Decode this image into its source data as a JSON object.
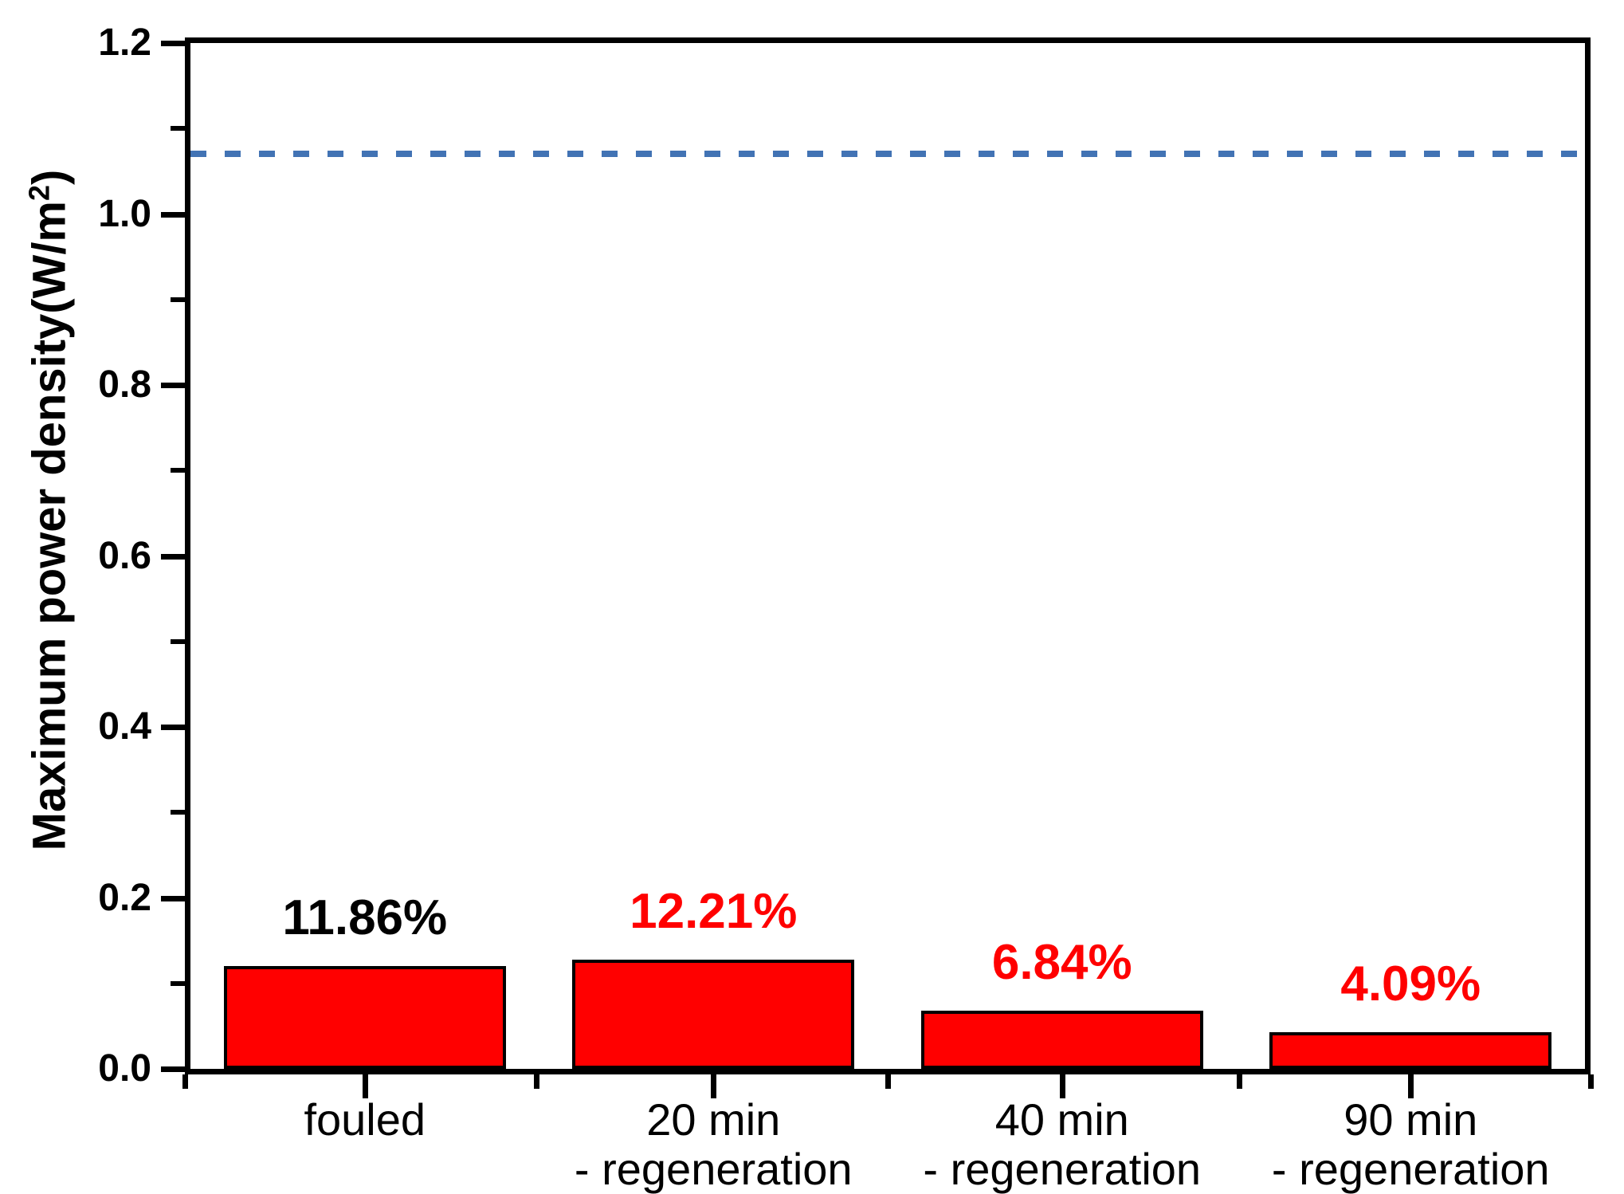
{
  "figure": {
    "background": "#ffffff"
  },
  "chart_data": {
    "type": "bar",
    "title": "",
    "xlabel": "",
    "ylabel": {
      "prefix": "Maximum power density(W/m",
      "sup": "2",
      "suffix": ")"
    },
    "ylim": [
      0,
      1.2
    ],
    "grid": false,
    "legend": false,
    "yticks": [
      {
        "value": 0.0,
        "label": "0.0"
      },
      {
        "value": 0.2,
        "label": "0.2"
      },
      {
        "value": 0.4,
        "label": "0.4"
      },
      {
        "value": 0.6,
        "label": "0.6"
      },
      {
        "value": 0.8,
        "label": "0.8"
      },
      {
        "value": 1.0,
        "label": "1.0"
      },
      {
        "value": 1.2,
        "label": "1.2"
      }
    ],
    "yminor_ticks": [
      0.1,
      0.3,
      0.5,
      0.7,
      0.9,
      1.1
    ],
    "categories": [
      {
        "line1": "fouled",
        "line2": ""
      },
      {
        "line1": "20 min",
        "line2": "- regeneration"
      },
      {
        "line1": "40 min",
        "line2": "- regeneration"
      },
      {
        "line1": "90 min",
        "line2": "- regeneration"
      }
    ],
    "series": [
      {
        "name": "maximum power density",
        "values": [
          0.12,
          0.128,
          0.068,
          0.043
        ],
        "bar_color": "#ff0000",
        "bar_border_color": "#000000"
      }
    ],
    "bar_labels": [
      {
        "text": "11.86%",
        "color": "#000000"
      },
      {
        "text": "12.21%",
        "color": "#ff0000"
      },
      {
        "text": "6.84%",
        "color": "#ff0000"
      },
      {
        "text": "4.09%",
        "color": "#ff0000"
      }
    ],
    "reference_line": {
      "value": 1.07,
      "color": "#4273b4",
      "style": "dashed"
    },
    "axis_color": "#000000"
  }
}
